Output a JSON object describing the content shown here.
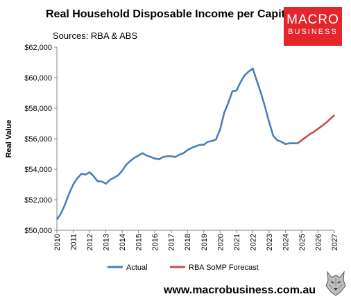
{
  "header": {
    "title": "Real Household Disposable Income per Capita",
    "subtitle": "Sources: RBA & ABS",
    "logo_line1": "MACRO",
    "logo_line2": "BUSINESS"
  },
  "footer": {
    "url": "www.macrobusiness.com.au"
  },
  "colors": {
    "actual": "#4a7ebb",
    "forecast": "#c0504d",
    "logo_bg": "#e3262b"
  },
  "chart_data": {
    "type": "line",
    "title": "Real Household Disposable Income per Capita",
    "ylabel": "Real Value",
    "xlabel": "",
    "xlim": [
      2010,
      2027
    ],
    "ylim": [
      50000,
      62000
    ],
    "x_ticks": [
      "2010",
      "2011",
      "2012",
      "2013",
      "2014",
      "2015",
      "2016",
      "2017",
      "2018",
      "2019",
      "2020",
      "2021",
      "2022",
      "2023",
      "2024",
      "2025",
      "2026",
      "2027"
    ],
    "y_ticks": [
      {
        "value": 50000,
        "label": "$50,000"
      },
      {
        "value": 52000,
        "label": "$52,000"
      },
      {
        "value": 54000,
        "label": "$54,000"
      },
      {
        "value": 56000,
        "label": "$56,000"
      },
      {
        "value": 58000,
        "label": "$58,000"
      },
      {
        "value": 60000,
        "label": "$60,000"
      },
      {
        "value": 62000,
        "label": "$62,000"
      }
    ],
    "grid": false,
    "legend": "bottom",
    "series": [
      {
        "name": "Actual",
        "color": "#4a7ebb",
        "x": [
          2010.0,
          2010.25,
          2010.5,
          2010.75,
          2011.0,
          2011.25,
          2011.5,
          2011.75,
          2012.0,
          2012.25,
          2012.5,
          2012.75,
          2013.0,
          2013.25,
          2013.5,
          2013.75,
          2014.0,
          2014.25,
          2014.5,
          2014.75,
          2015.0,
          2015.25,
          2015.5,
          2015.75,
          2016.0,
          2016.25,
          2016.5,
          2016.75,
          2017.0,
          2017.25,
          2017.5,
          2017.75,
          2018.0,
          2018.25,
          2018.5,
          2018.75,
          2019.0,
          2019.25,
          2019.5,
          2019.75,
          2020.0,
          2020.25,
          2020.5,
          2020.75,
          2021.0,
          2021.25,
          2021.5,
          2021.75,
          2022.0,
          2022.25,
          2022.5,
          2022.75,
          2023.0,
          2023.25,
          2023.5,
          2023.75,
          2024.0,
          2024.25,
          2024.5,
          2024.75
        ],
        "y": [
          50700,
          51100,
          51700,
          52400,
          53000,
          53400,
          53700,
          53650,
          53800,
          53550,
          53200,
          53200,
          53050,
          53300,
          53450,
          53600,
          53900,
          54300,
          54550,
          54750,
          54900,
          55050,
          54900,
          54800,
          54700,
          54650,
          54800,
          54850,
          54850,
          54800,
          54950,
          55050,
          55250,
          55400,
          55500,
          55600,
          55600,
          55800,
          55850,
          55950,
          56600,
          57700,
          58350,
          59100,
          59150,
          59700,
          60150,
          60400,
          60600,
          59800,
          59000,
          58100,
          57100,
          56200,
          55900,
          55800,
          55650,
          55700,
          55700,
          55700
        ]
      },
      {
        "name": "RBA SoMP Forecast",
        "color": "#c0504d",
        "x": [
          2024.75,
          2025.0,
          2025.25,
          2025.5,
          2025.75,
          2026.0,
          2026.25,
          2026.5,
          2026.75,
          2027.0
        ],
        "y": [
          55700,
          55900,
          56100,
          56300,
          56450,
          56650,
          56850,
          57050,
          57300,
          57550
        ]
      }
    ]
  }
}
